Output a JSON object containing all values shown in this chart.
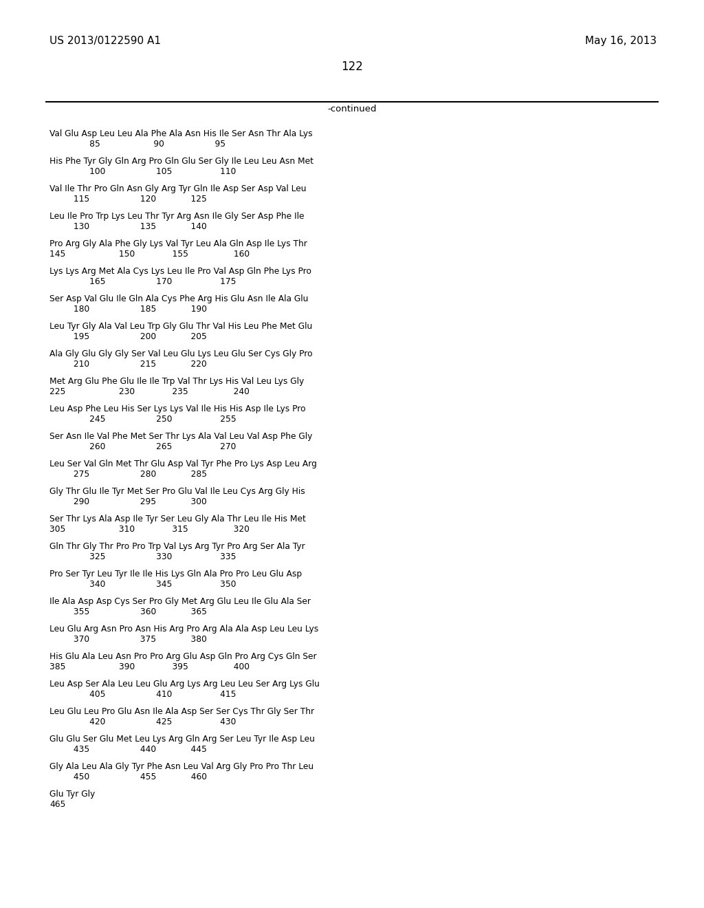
{
  "left_header": "US 2013/0122590 A1",
  "right_header": "May 16, 2013",
  "page_number": "122",
  "continued_text": "-continued",
  "background_color": "#ffffff",
  "text_color": "#000000",
  "sequence_data": [
    [
      "Val Glu Asp Leu Leu Ala Phe Ala Asn His Ile Ser Asn Thr Ala Lys",
      "               85                    90                   95"
    ],
    [
      "His Phe Tyr Gly Gln Arg Pro Gln Glu Ser Gly Ile Leu Leu Asn Met",
      "               100                   105                  110"
    ],
    [
      "Val Ile Thr Pro Gln Asn Gly Arg Tyr Gln Ile Asp Ser Asp Val Leu",
      "         115                   120             125"
    ],
    [
      "Leu Ile Pro Trp Lys Leu Thr Tyr Arg Asn Ile Gly Ser Asp Phe Ile",
      "         130                   135             140"
    ],
    [
      "Pro Arg Gly Ala Phe Gly Lys Val Tyr Leu Ala Gln Asp Ile Lys Thr",
      "145                    150              155                 160"
    ],
    [
      "Lys Lys Arg Met Ala Cys Lys Leu Ile Pro Val Asp Gln Phe Lys Pro",
      "               165                   170                  175"
    ],
    [
      "Ser Asp Val Glu Ile Gln Ala Cys Phe Arg His Glu Asn Ile Ala Glu",
      "         180                   185             190"
    ],
    [
      "Leu Tyr Gly Ala Val Leu Trp Gly Glu Thr Val His Leu Phe Met Glu",
      "         195                   200             205"
    ],
    [
      "Ala Gly Glu Gly Gly Ser Val Leu Glu Lys Leu Glu Ser Cys Gly Pro",
      "         210                   215             220"
    ],
    [
      "Met Arg Glu Phe Glu Ile Ile Trp Val Thr Lys His Val Leu Lys Gly",
      "225                    230              235                 240"
    ],
    [
      "Leu Asp Phe Leu His Ser Lys Lys Val Ile His His Asp Ile Lys Pro",
      "               245                   250                  255"
    ],
    [
      "Ser Asn Ile Val Phe Met Ser Thr Lys Ala Val Leu Val Asp Phe Gly",
      "               260                   265                  270"
    ],
    [
      "Leu Ser Val Gln Met Thr Glu Asp Val Tyr Phe Pro Lys Asp Leu Arg",
      "         275                   280             285"
    ],
    [
      "Gly Thr Glu Ile Tyr Met Ser Pro Glu Val Ile Leu Cys Arg Gly His",
      "         290                   295             300"
    ],
    [
      "Ser Thr Lys Ala Asp Ile Tyr Ser Leu Gly Ala Thr Leu Ile His Met",
      "305                    310              315                 320"
    ],
    [
      "Gln Thr Gly Thr Pro Pro Trp Val Lys Arg Tyr Pro Arg Ser Ala Tyr",
      "               325                   330                  335"
    ],
    [
      "Pro Ser Tyr Leu Tyr Ile Ile His Lys Gln Ala Pro Pro Leu Glu Asp",
      "               340                   345                  350"
    ],
    [
      "Ile Ala Asp Asp Cys Ser Pro Gly Met Arg Glu Leu Ile Glu Ala Ser",
      "         355                   360             365"
    ],
    [
      "Leu Glu Arg Asn Pro Asn His Arg Pro Arg Ala Ala Asp Leu Leu Lys",
      "         370                   375             380"
    ],
    [
      "His Glu Ala Leu Asn Pro Pro Arg Glu Asp Gln Pro Arg Cys Gln Ser",
      "385                    390              395                 400"
    ],
    [
      "Leu Asp Ser Ala Leu Leu Glu Arg Lys Arg Leu Leu Ser Arg Lys Glu",
      "               405                   410                  415"
    ],
    [
      "Leu Glu Leu Pro Glu Asn Ile Ala Asp Ser Ser Cys Thr Gly Ser Thr",
      "               420                   425                  430"
    ],
    [
      "Glu Glu Ser Glu Met Leu Lys Arg Gln Arg Ser Leu Tyr Ile Asp Leu",
      "         435                   440             445"
    ],
    [
      "Gly Ala Leu Ala Gly Tyr Phe Asn Leu Val Arg Gly Pro Pro Thr Leu",
      "         450                   455             460"
    ],
    [
      "Glu Tyr Gly",
      "465"
    ]
  ]
}
